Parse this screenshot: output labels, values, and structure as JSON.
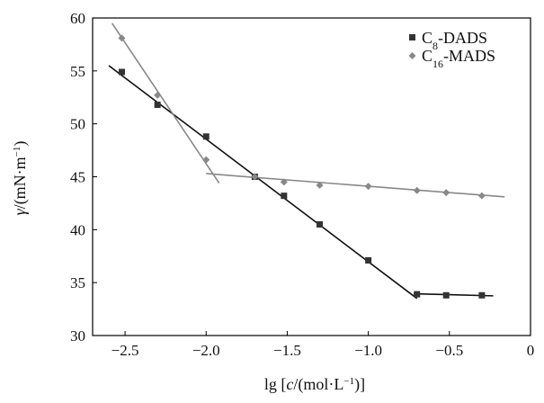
{
  "chart_data": {
    "type": "scatter",
    "xlabel": "lg [c/(mol·L⁻¹)]",
    "ylabel": "γ/(mN·m⁻¹)",
    "xlim": [
      -2.7,
      0
    ],
    "ylim": [
      30,
      60
    ],
    "x_ticks": [
      "−2.5",
      "−2.0",
      "−1.5",
      "−1.0",
      "−0.5",
      "0"
    ],
    "y_ticks": [
      "30",
      "35",
      "40",
      "45",
      "50",
      "55",
      "60"
    ],
    "legend_position": "top-right",
    "series": [
      {
        "name": "C8-DADS",
        "marker": "square",
        "color": "#333333",
        "x": [
          -2.52,
          -2.3,
          -2.0,
          -1.7,
          -1.52,
          -1.3,
          -1.0,
          -0.7,
          -0.52,
          -0.3
        ],
        "y": [
          54.9,
          51.8,
          48.8,
          45.0,
          43.2,
          40.5,
          37.1,
          33.9,
          33.8,
          33.8
        ]
      },
      {
        "name": "C16-MADS",
        "marker": "diamond",
        "color": "#888888",
        "x": [
          -2.52,
          -2.3,
          -2.0,
          -1.7,
          -1.52,
          -1.3,
          -1.0,
          -0.7,
          -0.52,
          -0.3
        ],
        "y": [
          58.1,
          52.7,
          46.6,
          45.0,
          44.5,
          44.2,
          44.1,
          43.7,
          43.5,
          43.2
        ]
      }
    ],
    "fit_lines": [
      {
        "series": "C8-DADS",
        "color": "#111111",
        "x": [
          -2.6,
          -0.7
        ],
        "y": [
          55.5,
          33.5
        ]
      },
      {
        "series": "C8-DADS",
        "color": "#111111",
        "x": [
          -0.72,
          -0.23
        ],
        "y": [
          33.95,
          33.75
        ]
      },
      {
        "series": "C16-MADS",
        "color": "#888888",
        "x": [
          -2.58,
          -1.92
        ],
        "y": [
          59.5,
          44.4
        ]
      },
      {
        "series": "C16-MADS",
        "color": "#888888",
        "x": [
          -2.0,
          -0.16
        ],
        "y": [
          45.3,
          43.1
        ]
      }
    ]
  }
}
